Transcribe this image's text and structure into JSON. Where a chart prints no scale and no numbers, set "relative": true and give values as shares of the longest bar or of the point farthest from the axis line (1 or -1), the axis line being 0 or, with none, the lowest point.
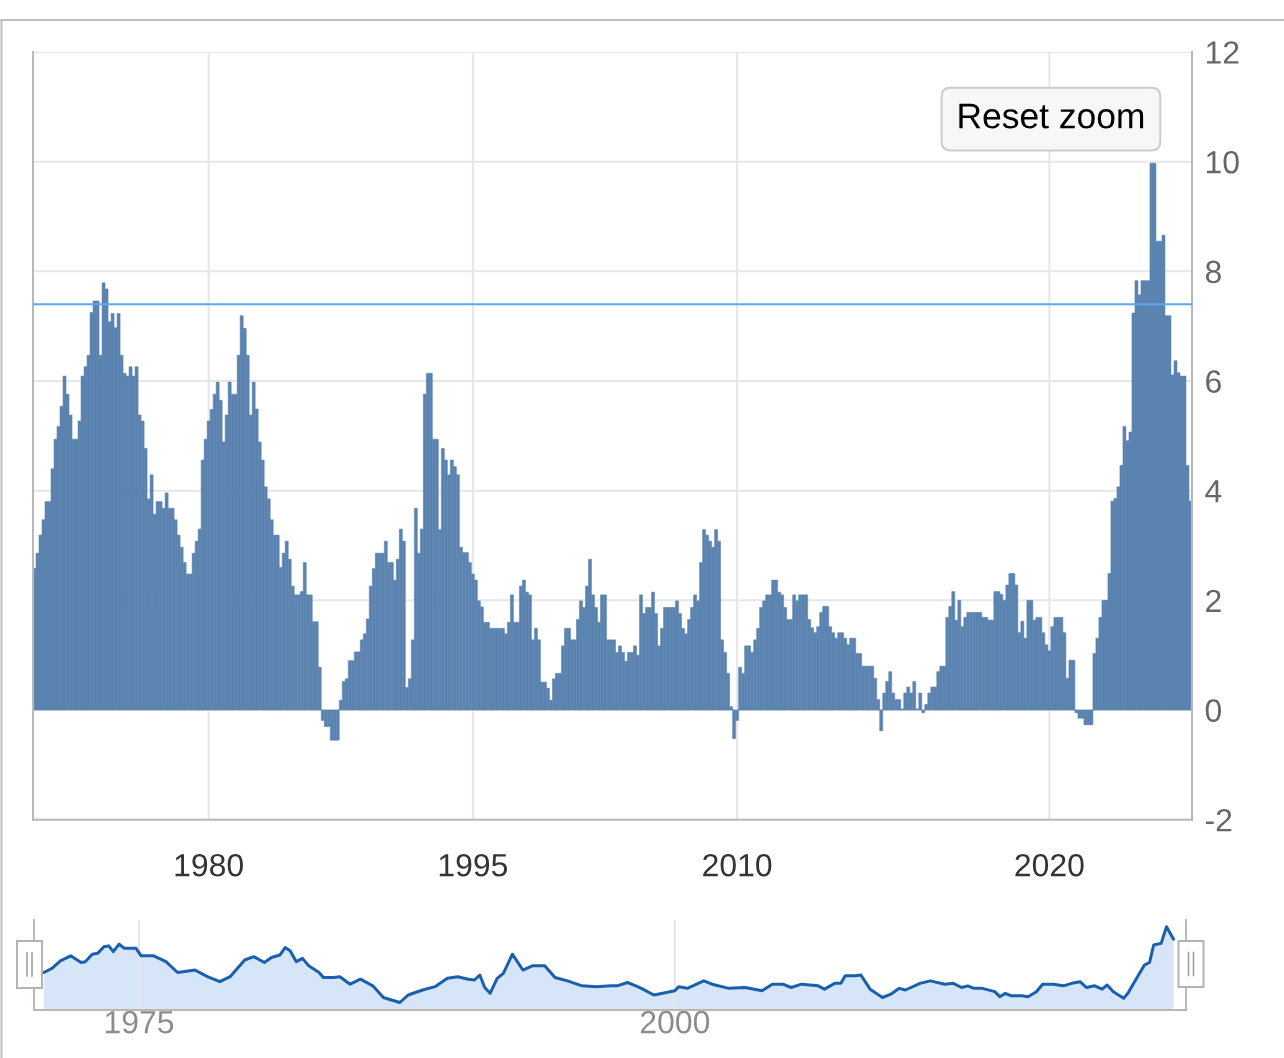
{
  "chart_data": [
    {
      "type": "bar",
      "color": "#5b83b0",
      "categories": [
        null,
        null,
        null,
        null,
        null,
        null,
        null,
        null,
        null,
        null,
        null,
        null,
        null,
        null,
        null,
        null,
        null,
        null,
        null,
        null,
        null,
        null,
        null,
        null,
        null,
        null,
        null,
        null,
        null,
        null,
        null,
        null,
        null,
        null,
        null,
        null,
        null,
        null,
        null,
        null,
        null,
        null,
        null,
        null,
        null,
        null,
        null,
        null,
        null,
        null,
        null,
        null,
        null,
        null,
        null,
        null,
        null,
        null,
        "1980",
        null,
        null,
        null,
        null,
        null,
        null,
        null,
        null,
        null,
        null,
        null,
        null,
        null,
        null,
        null,
        null,
        null,
        null,
        null,
        null,
        null,
        null,
        null,
        null,
        null,
        null,
        null,
        null,
        null,
        null,
        null,
        null,
        null,
        null,
        null,
        null,
        null,
        null,
        null,
        null,
        null,
        null,
        null,
        null,
        null,
        null,
        null,
        null,
        null,
        null,
        null,
        null,
        null,
        null,
        null,
        null,
        null,
        null,
        null,
        null,
        null,
        null,
        null,
        null,
        null,
        null,
        null,
        null,
        null,
        null,
        null,
        null,
        null,
        null,
        null,
        null,
        null,
        null,
        null,
        null,
        null,
        null,
        null,
        null,
        null,
        null,
        null,
        "1995",
        null,
        null,
        null,
        null,
        null,
        null,
        null,
        null,
        null,
        null,
        null,
        null,
        null,
        null,
        null,
        null,
        null,
        null,
        null,
        null,
        null,
        null,
        null,
        null,
        null,
        null,
        null,
        null,
        null,
        null,
        null,
        null,
        null,
        null,
        null,
        null,
        null,
        null,
        null,
        null,
        null,
        null,
        null,
        null,
        null,
        null,
        null,
        null,
        null,
        null,
        null,
        null,
        null,
        null,
        null,
        null,
        null,
        null,
        null,
        null,
        null,
        null,
        null,
        null,
        null,
        null,
        null,
        null,
        null,
        null,
        null,
        null,
        null,
        null,
        null,
        null,
        null,
        null,
        null,
        null,
        null,
        null,
        null,
        null,
        null,
        null,
        null,
        "2010",
        null,
        null,
        null,
        null,
        null,
        null,
        null,
        null,
        null,
        null,
        null,
        null,
        null,
        null,
        null,
        null,
        null,
        null,
        null,
        null,
        null,
        null,
        null,
        null,
        null,
        null,
        null,
        null,
        null,
        null,
        null,
        null,
        null,
        null,
        null,
        null,
        null,
        null,
        null,
        null,
        null,
        null,
        null,
        null,
        null,
        null,
        null,
        null,
        null,
        null,
        null,
        null,
        null,
        null,
        null,
        null,
        null,
        null,
        null,
        null,
        null,
        null,
        null,
        null,
        null,
        null,
        null,
        null,
        null,
        null,
        null,
        null,
        null,
        null,
        null,
        null,
        null,
        null,
        null,
        null,
        null,
        null,
        null,
        null,
        null,
        null,
        null,
        null,
        null,
        null,
        null,
        null,
        null,
        null,
        null,
        null,
        null,
        null,
        null,
        null,
        null,
        null,
        null,
        "2020",
        null,
        null,
        null,
        null,
        null,
        null,
        null,
        null,
        null,
        null,
        null,
        null,
        null,
        null,
        null,
        null,
        null,
        null,
        null,
        null,
        null,
        null,
        null,
        null,
        null,
        null,
        null,
        null,
        null,
        null,
        null,
        null,
        null,
        null,
        null,
        null,
        null,
        null,
        null,
        null,
        null,
        null,
        null,
        null,
        null,
        null,
        null
      ],
      "values": [
        2.58,
        2.86,
        3.19,
        3.47,
        3.8,
        3.8,
        4.4,
        4.94,
        5.17,
        5.54,
        6.09,
        5.76,
        5.38,
        4.94,
        4.94,
        5.27,
        6.09,
        6.26,
        6.47,
        7.25,
        7.46,
        7.46,
        6.47,
        7.79,
        7.68,
        7.08,
        7.23,
        6.97,
        7.23,
        6.47,
        6.14,
        6.09,
        6.26,
        6.09,
        6.26,
        5.38,
        5.27,
        4.77,
        3.85,
        4.29,
        3.57,
        3.8,
        3.8,
        3.68,
        3.96,
        3.68,
        3.68,
        3.47,
        3.19,
        2.97,
        2.69,
        2.48,
        2.48,
        2.86,
        3.08,
        3.3,
        4.56,
        4.94,
        5.27,
        5.48,
        5.76,
        5.98,
        5.65,
        4.89,
        5.38,
        5.98,
        5.76,
        5.76,
        6.47,
        7.19,
        6.96,
        6.47,
        5.38,
        5.98,
        5.49,
        4.89,
        4.56,
        4.07,
        3.85,
        3.47,
        3.19,
        3.19,
        2.6,
        2.86,
        3.08,
        2.75,
        2.26,
        2.1,
        2.1,
        2.16,
        2.69,
        2.1,
        2.1,
        1.61,
        1.61,
        0.78,
        -0.19,
        -0.3,
        -0.3,
        -0.55,
        -0.55,
        -0.55,
        0.18,
        0.52,
        0.57,
        0.9,
        0.9,
        1.06,
        1.06,
        1.28,
        1.39,
        1.66,
        2.26,
        2.58,
        2.86,
        2.86,
        2.86,
        3.08,
        2.69,
        2.69,
        2.37,
        2.75,
        3.3,
        3.08,
        0.41,
        0.57,
        1.28,
        3.68,
        2.86,
        3.3,
        5.76,
        6.14,
        6.14,
        4.94,
        4.94,
        3.29,
        4.77,
        4.56,
        4.29,
        4.56,
        4.44,
        4.29,
        2.97,
        2.87,
        2.87,
        2.69,
        2.48,
        2.37,
        1.99,
        1.88,
        1.6,
        1.6,
        1.49,
        1.49,
        1.49,
        1.49,
        1.49,
        1.39,
        1.6,
        2.1,
        1.6,
        1.6,
        2.26,
        2.37,
        2.15,
        2.1,
        1.28,
        1.49,
        1.28,
        0.51,
        0.51,
        0.4,
        0.18,
        0.57,
        0.67,
        0.67,
        1.17,
        1.49,
        1.49,
        1.28,
        1.28,
        1.65,
        1.99,
        1.87,
        2.26,
        2.75,
        2.1,
        1.87,
        1.6,
        2.1,
        2.1,
        1.28,
        1.28,
        1.28,
        1.05,
        1.17,
        1.05,
        0.89,
        1.05,
        1.05,
        1.17,
        1.0,
        2.1,
        1.76,
        1.87,
        1.87,
        2.15,
        1.76,
        1.17,
        1.49,
        1.87,
        1.87,
        1.87,
        1.87,
        1.99,
        1.76,
        1.49,
        1.39,
        1.65,
        1.87,
        2.1,
        1.99,
        2.69,
        3.29,
        3.19,
        3.08,
        2.97,
        3.29,
        3.08,
        1.28,
        1.05,
        0.67,
        0.06,
        -0.52,
        -0.19,
        0.78,
        0.67,
        1.17,
        1.17,
        1.05,
        1.28,
        1.49,
        1.87,
        1.99,
        2.1,
        2.1,
        2.37,
        2.37,
        2.15,
        2.1,
        1.87,
        1.65,
        1.65,
        2.1,
        1.99,
        2.1,
        2.1,
        2.1,
        1.65,
        1.5,
        1.41,
        1.52,
        1.78,
        1.89,
        1.89,
        1.52,
        1.41,
        1.31,
        1.41,
        1.41,
        1.31,
        1.19,
        1.31,
        1.31,
        1.03,
        1.03,
        0.8,
        0.8,
        0.8,
        0.8,
        0.58,
        0.19,
        -0.38,
        0.31,
        0.52,
        0.7,
        0.31,
        0.19,
        0.19,
        0.02,
        0.31,
        0.42,
        0.31,
        0.52,
        0.02,
        0.31,
        -0.05,
        0.1,
        0.31,
        0.42,
        0.42,
        0.7,
        0.8,
        0.8,
        1.69,
        1.89,
        2.16,
        1.64,
        2.0,
        1.52,
        1.69,
        1.78,
        1.78,
        1.78,
        1.78,
        1.78,
        1.69,
        1.69,
        1.64,
        1.64,
        2.16,
        2.16,
        2.11,
        2.0,
        2.28,
        2.49,
        2.49,
        2.28,
        1.41,
        1.62,
        1.31,
        2.0,
        2.0,
        1.64,
        1.69,
        1.69,
        1.41,
        1.19,
        1.08,
        1.52,
        1.69,
        1.69,
        1.69,
        1.41,
        0.58,
        0.91,
        0.91,
        -0.05,
        -0.15,
        -0.15,
        -0.27,
        -0.27,
        -0.27,
        1.03,
        1.31,
        1.69,
        2.0,
        2.0,
        2.49,
        3.81,
        3.86,
        4.07,
        4.46,
        5.17,
        4.91,
        5.07,
        7.24,
        7.83,
        7.57,
        7.83,
        7.83,
        7.83,
        9.97,
        9.97,
        8.55,
        8.55,
        8.66,
        7.19,
        7.19,
        6.11,
        6.37,
        6.15,
        6.09,
        6.09,
        4.46,
        3.81
      ],
      "ylim": [
        -2,
        12
      ],
      "yticks": [
        -2,
        0,
        2,
        4,
        6,
        8,
        10,
        12
      ],
      "grid": true,
      "ref_lines": [
        {
          "axis": "y",
          "value": 7.4,
          "color": "#5aa8f0"
        }
      ],
      "annotations": [
        "Reset zoom"
      ]
    },
    {
      "type": "area",
      "relative": true,
      "color": "#1a5fad",
      "x": [
        1970.56,
        1970.94,
        1971.33,
        1971.81,
        1972.3,
        1972.49,
        1972.82,
        1973.07,
        1973.36,
        1973.59,
        1973.8,
        1974.07,
        1974.32,
        1974.86,
        1975.1,
        1975.68,
        1976.26,
        1976.8,
        1977.61,
        1978.19,
        1978.77,
        1979.25,
        1979.93,
        1980.35,
        1980.85,
        1981.18,
        1981.57,
        1981.82,
        1982.05,
        1982.34,
        1982.63,
        1982.92,
        1983.4,
        1983.6,
        1984.08,
        1984.37,
        1984.85,
        1985.33,
        1985.91,
        1986.4,
        1986.78,
        1987.17,
        1987.56,
        1988.23,
        1988.81,
        1989.39,
        1989.87,
        1990.36,
        1990.65,
        1990.9,
        1991.13,
        1991.38,
        1991.71,
        1992.0,
        1992.42,
        1992.91,
        1993.35,
        1993.93,
        1994.41,
        1994.99,
        1995.67,
        1996.34,
        1997.02,
        1997.31,
        1997.79,
        1998.18,
        1998.44,
        1999.02,
        1999.61,
        1999.99,
        2000.19,
        2000.58,
        2001.35,
        2001.74,
        2002.52,
        2003.29,
        2004.07,
        2004.55,
        2005.04,
        2005.43,
        2005.91,
        2006.69,
        2006.98,
        2007.46,
        2007.75,
        2007.95,
        2008.43,
        2008.68,
        2009.11,
        2009.69,
        2010.08,
        2010.47,
        2010.76,
        2011.44,
        2011.92,
        2012.6,
        2012.99,
        2013.38,
        2013.67,
        2013.96,
        2014.35,
        2014.93,
        2015.16,
        2015.42,
        2015.71,
        2016.19,
        2016.48,
        2016.87,
        2017.16,
        2017.65,
        2018.13,
        2018.52,
        2018.91,
        2019.2,
        2019.59,
        2019.94,
        2020.17,
        2020.46,
        2020.94,
        2021.14,
        2021.43,
        2021.91,
        2022.15,
        2022.34,
        2022.69,
        2022.94,
        2023.27
      ],
      "values": [
        0.45,
        0.5,
        0.59,
        0.65,
        0.57,
        0.58,
        0.67,
        0.68,
        0.76,
        0.77,
        0.7,
        0.79,
        0.74,
        0.74,
        0.65,
        0.65,
        0.58,
        0.45,
        0.48,
        0.4,
        0.34,
        0.4,
        0.6,
        0.64,
        0.57,
        0.63,
        0.66,
        0.75,
        0.71,
        0.58,
        0.62,
        0.53,
        0.45,
        0.39,
        0.39,
        0.4,
        0.31,
        0.37,
        0.29,
        0.15,
        0.12,
        0.09,
        0.18,
        0.24,
        0.28,
        0.38,
        0.4,
        0.37,
        0.36,
        0.42,
        0.27,
        0.2,
        0.38,
        0.44,
        0.67,
        0.48,
        0.53,
        0.53,
        0.39,
        0.35,
        0.29,
        0.28,
        0.29,
        0.29,
        0.33,
        0.29,
        0.26,
        0.18,
        0.21,
        0.23,
        0.28,
        0.26,
        0.35,
        0.31,
        0.26,
        0.27,
        0.23,
        0.31,
        0.31,
        0.27,
        0.31,
        0.29,
        0.25,
        0.32,
        0.32,
        0.41,
        0.41,
        0.42,
        0.25,
        0.15,
        0.19,
        0.26,
        0.24,
        0.32,
        0.35,
        0.31,
        0.32,
        0.27,
        0.29,
        0.26,
        0.26,
        0.22,
        0.16,
        0.2,
        0.17,
        0.17,
        0.16,
        0.22,
        0.31,
        0.31,
        0.29,
        0.32,
        0.34,
        0.27,
        0.29,
        0.25,
        0.3,
        0.22,
        0.14,
        0.2,
        0.33,
        0.54,
        0.57,
        0.78,
        0.8,
        1.0,
        0.85
      ],
      "xlim": [
        1970.1,
        2023.85
      ],
      "xticks": [
        1975,
        2000
      ],
      "grid": "x"
    }
  ]
}
